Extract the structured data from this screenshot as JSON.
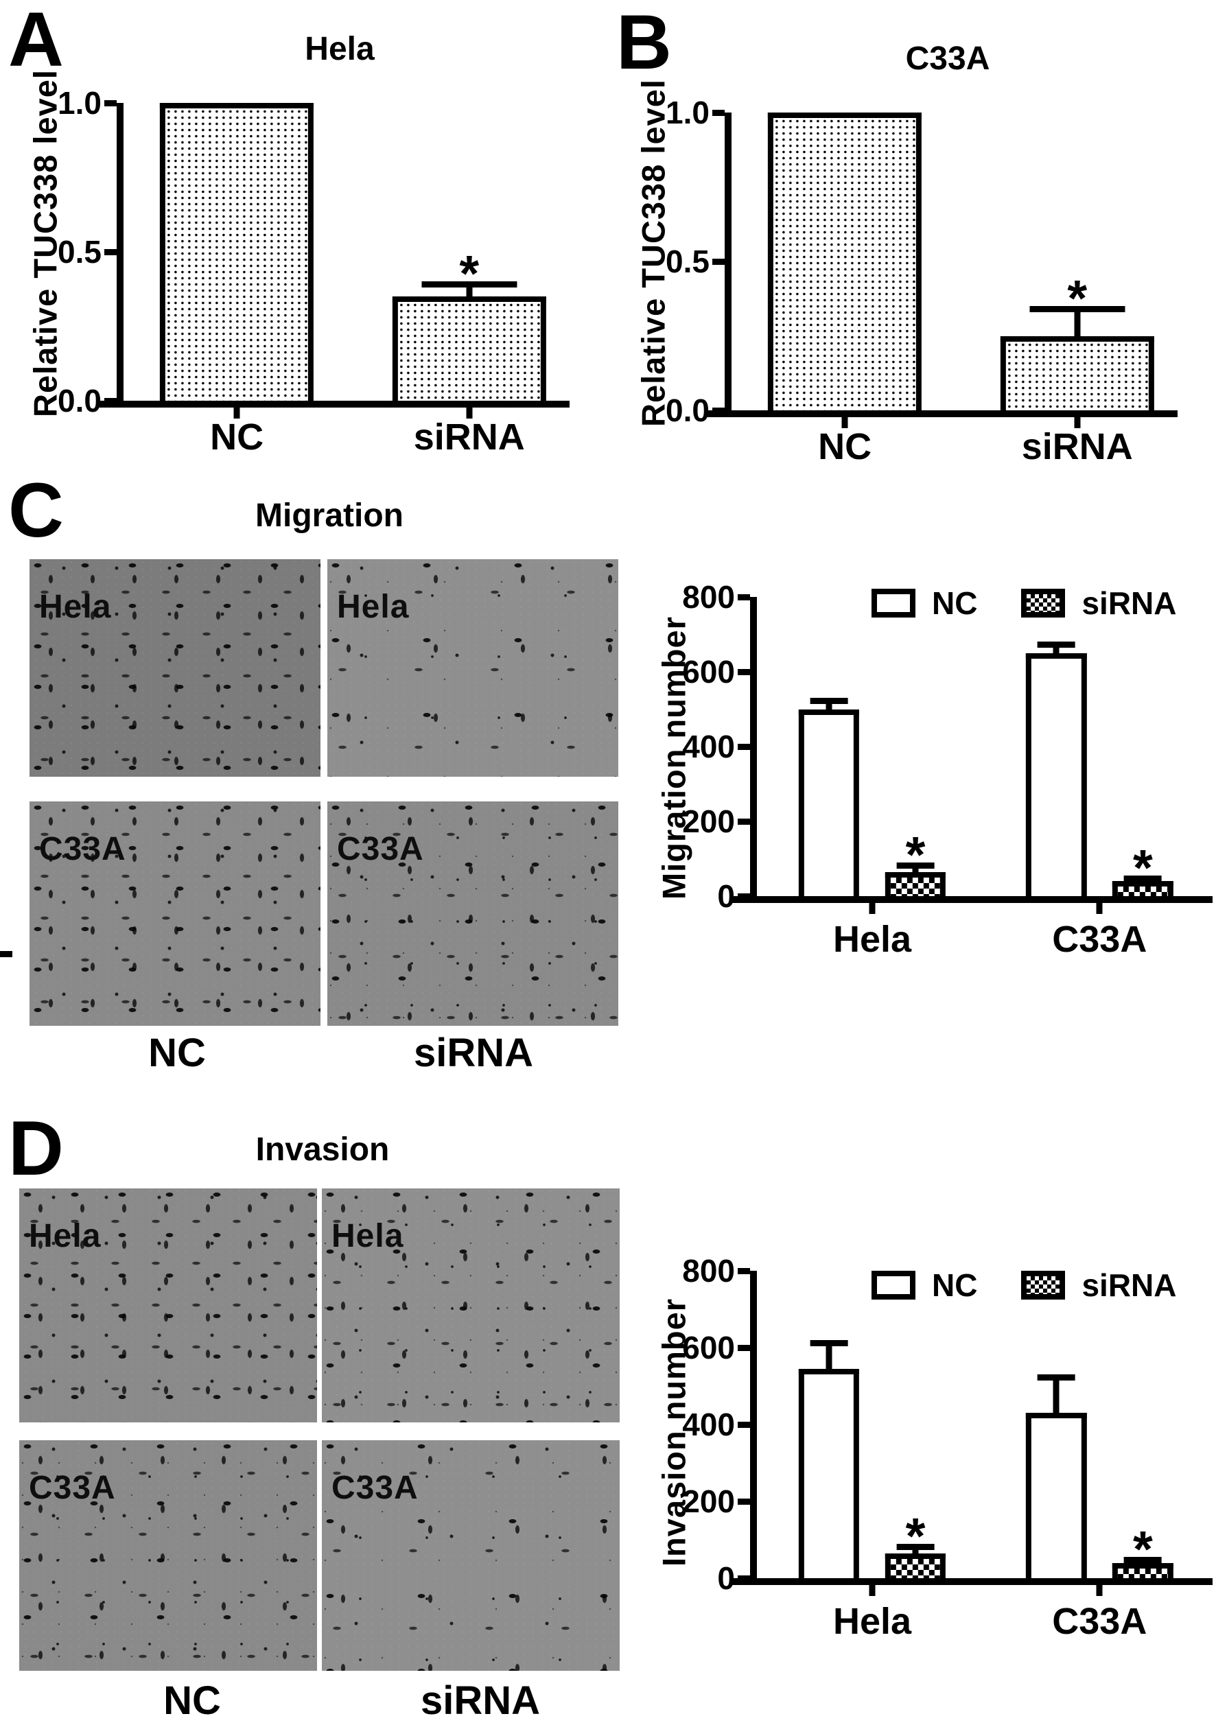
{
  "sig_marker": "*",
  "panels": {
    "A": {
      "letter": "A",
      "title": "Hela"
    },
    "B": {
      "letter": "B",
      "title": "C33A"
    },
    "C": {
      "letter": "C",
      "title": "Migration",
      "images": [
        {
          "label": "Hela"
        },
        {
          "label": "Hela"
        },
        {
          "label": "C33A"
        },
        {
          "label": "C33A"
        }
      ],
      "column_labels": [
        "NC",
        "siRNA"
      ]
    },
    "D": {
      "letter": "D",
      "title": "Invasion",
      "images": [
        {
          "label": "Hela"
        },
        {
          "label": "Hela"
        },
        {
          "label": "C33A"
        },
        {
          "label": "C33A"
        }
      ],
      "column_labels": [
        "NC",
        "siRNA"
      ]
    }
  },
  "chart_data": [
    {
      "id": "tuc338-hela",
      "type": "bar",
      "title": "Hela",
      "ylabel": "Relative TUC338 level",
      "categories": [
        "NC",
        "siRNA"
      ],
      "values": [
        1.0,
        0.35
      ],
      "errors": [
        0,
        0.05
      ],
      "significant": [
        false,
        true
      ],
      "yticks": [
        0,
        0.5,
        1.0
      ],
      "ytick_labels": [
        "0.0",
        "0.5",
        "1.0"
      ],
      "ylim": [
        0,
        1.0
      ],
      "grid": false,
      "bar_pattern": "dots"
    },
    {
      "id": "tuc338-c33a",
      "type": "bar",
      "title": "C33A",
      "ylabel": "Relative TUC338 level",
      "categories": [
        "NC",
        "siRNA"
      ],
      "values": [
        1.0,
        0.25
      ],
      "errors": [
        0,
        0.1
      ],
      "significant": [
        false,
        true
      ],
      "yticks": [
        0,
        0.5,
        1.0
      ],
      "ytick_labels": [
        "0.0",
        "0.5",
        "1.0"
      ],
      "ylim": [
        0,
        1.0
      ],
      "grid": false,
      "bar_pattern": "dots"
    },
    {
      "id": "migration",
      "type": "bar",
      "title": "Migration",
      "ylabel": "Migration number",
      "categories": [
        "Hela",
        "C33A"
      ],
      "series": [
        {
          "name": "NC",
          "values": [
            500,
            650
          ],
          "errors": [
            30,
            30
          ],
          "significant": [
            false,
            false
          ],
          "pattern": "open"
        },
        {
          "name": "siRNA",
          "values": [
            65,
            40
          ],
          "errors": [
            25,
            15
          ],
          "significant": [
            true,
            true
          ],
          "pattern": "checker"
        }
      ],
      "yticks": [
        0,
        200,
        400,
        600,
        800
      ],
      "ytick_labels": [
        "0",
        "200",
        "400",
        "600",
        "800"
      ],
      "ylim": [
        0,
        800
      ],
      "legend_position": "top",
      "grid": false
    },
    {
      "id": "invasion",
      "type": "bar",
      "title": "Invasion",
      "ylabel": "Invasion number",
      "categories": [
        "Hela",
        "C33A"
      ],
      "series": [
        {
          "name": "NC",
          "values": [
            545,
            430
          ],
          "errors": [
            75,
            100
          ],
          "significant": [
            false,
            false
          ],
          "pattern": "open"
        },
        {
          "name": "siRNA",
          "values": [
            65,
            40
          ],
          "errors": [
            25,
            15
          ],
          "significant": [
            true,
            true
          ],
          "pattern": "checker"
        }
      ],
      "yticks": [
        0,
        200,
        400,
        600,
        800
      ],
      "ytick_labels": [
        "0",
        "200",
        "400",
        "600",
        "800"
      ],
      "ylim": [
        0,
        800
      ],
      "legend_position": "top",
      "grid": false
    }
  ]
}
